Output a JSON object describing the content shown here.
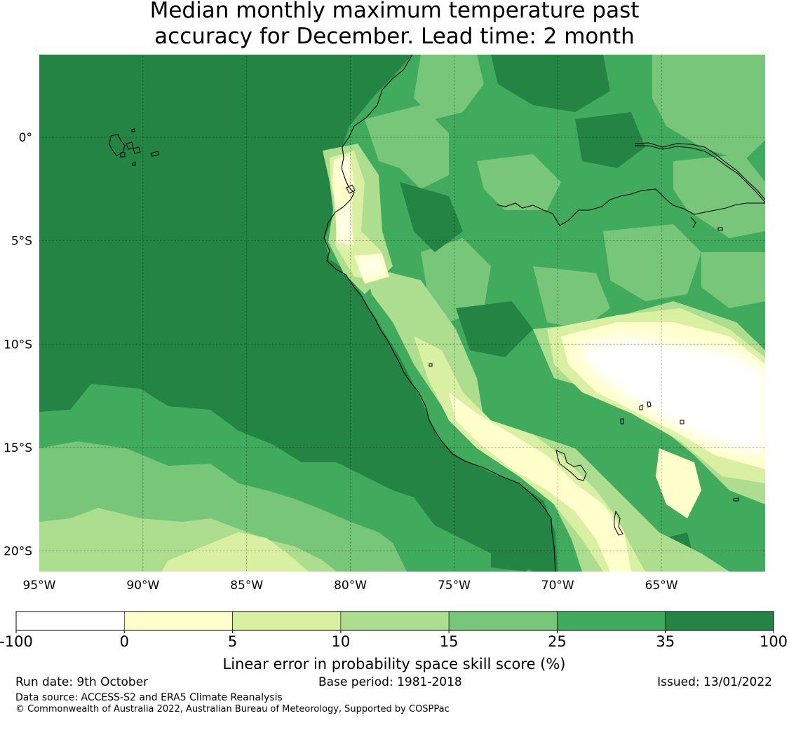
{
  "title": {
    "line1": "Median monthly maximum temperature past",
    "line2": "accuracy for December. Lead time: 2 month"
  },
  "map": {
    "lon_range": [
      -95,
      -60
    ],
    "lat_range": [
      -21,
      4
    ],
    "lon_ticks": [
      {
        "value": -95,
        "label": "95°W"
      },
      {
        "value": -90,
        "label": "90°W"
      },
      {
        "value": -85,
        "label": "85°W"
      },
      {
        "value": -80,
        "label": "80°W"
      },
      {
        "value": -75,
        "label": "75°W"
      },
      {
        "value": -70,
        "label": "70°W"
      },
      {
        "value": -65,
        "label": "65°W"
      }
    ],
    "lat_ticks": [
      {
        "value": 0,
        "label": "0°"
      },
      {
        "value": -5,
        "label": "5°S"
      },
      {
        "value": -10,
        "label": "10°S"
      },
      {
        "value": -15,
        "label": "15°S"
      },
      {
        "value": -20,
        "label": "20°S"
      }
    ],
    "ocean_color": "#238443"
  },
  "colorbar": {
    "label": "Linear error in probability space skill score (%)",
    "boundaries": [
      "-100",
      "0",
      "5",
      "10",
      "15",
      "25",
      "35",
      "100"
    ],
    "colors": [
      "#ffffff",
      "#ffffcc",
      "#d9f0a3",
      "#addd8e",
      "#78c679",
      "#41ab5d",
      "#238443"
    ]
  },
  "footer": {
    "run_date": "Run date: 9th October",
    "base_period": "Base period: 1981-2018",
    "issued": "Issued: 13/01/2022",
    "data_source": "Data source: ACCESS-S2 and ERA5 Climate Reanalysis",
    "copyright": "© Commonwealth of Australia 2022, Australian Bureau of Meteorology, Supported by COSPPac"
  }
}
